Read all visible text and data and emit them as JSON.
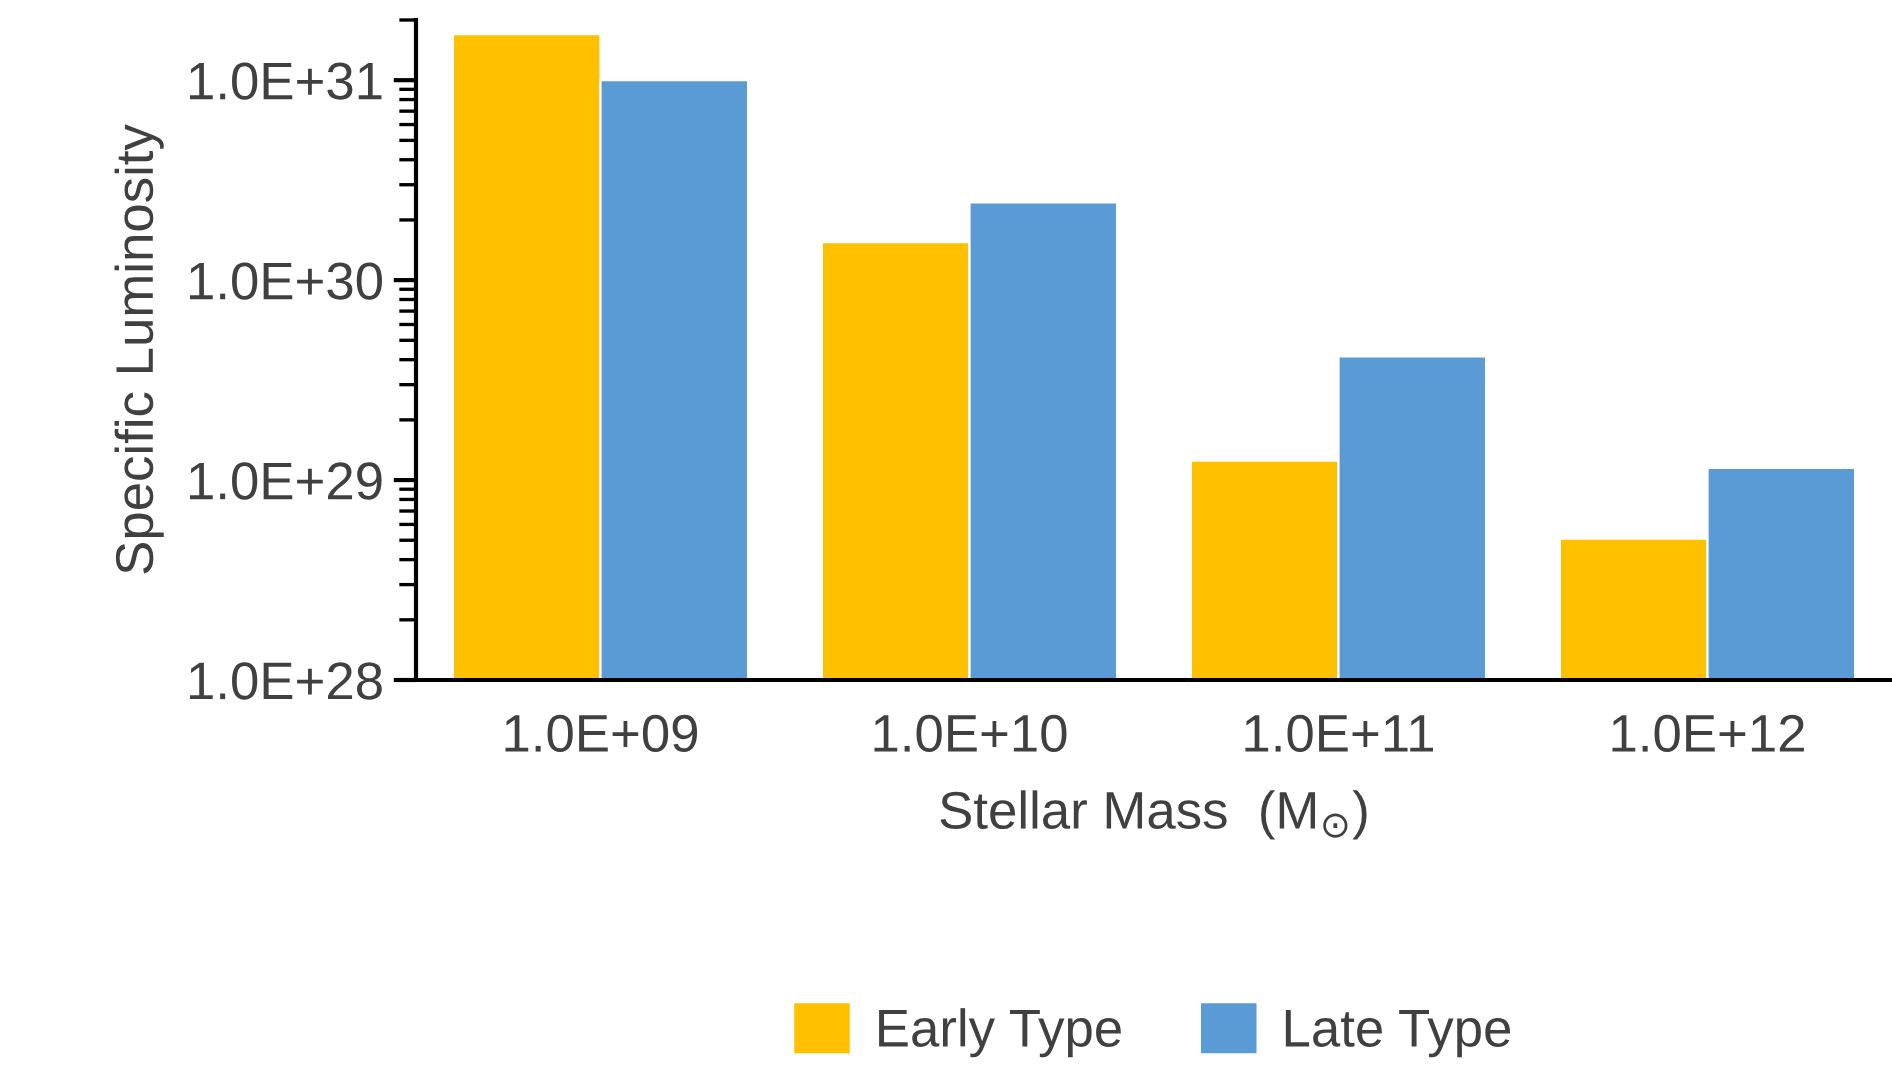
{
  "chart_data": {
    "type": "bar",
    "xlabel": "Stellar Mass  (M$_{⊙}$)",
    "ylabel": "Specific Luminosity",
    "categories": [
      "1.0E+09",
      "1.0E+10",
      "1.0E+11",
      "1.0E+12"
    ],
    "series": [
      {
        "name": "Early Type",
        "color": "#ffc000",
        "values": [
          1.7e+31,
          1.55e+30,
          1.25e+29,
          5.1e+28
        ]
      },
      {
        "name": "Late Type",
        "color": "#5b9bd5",
        "values": [
          1e+31,
          2.45e+30,
          4.15e+29,
          1.15e+29
        ]
      }
    ],
    "log": "y",
    "ylim": [
      1e+28,
      2e+31
    ],
    "yticks": [
      {
        "value": 1e+28,
        "label": "1.0E+28"
      },
      {
        "value": 1e+29,
        "label": "1.0E+29"
      },
      {
        "value": 1e+30,
        "label": "1.0E+30"
      },
      {
        "value": 1e+31,
        "label": "1.0E+31"
      }
    ],
    "grid": false,
    "legend": "bottom"
  }
}
